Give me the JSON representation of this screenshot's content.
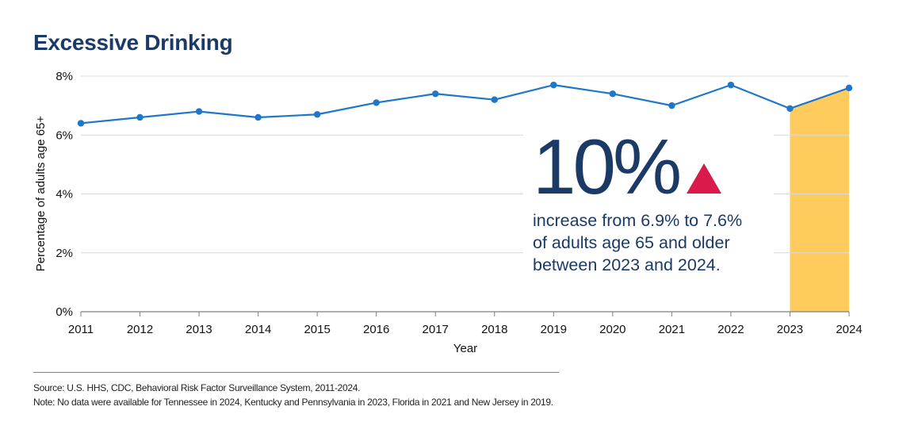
{
  "title": "Excessive Drinking",
  "callout": {
    "big_value": "10%",
    "direction_icon": "up-triangle-icon",
    "text_lines": [
      "increase from 6.9% to 7.6%",
      "of adults age 65 and older",
      "between 2023 and 2024."
    ]
  },
  "footnotes": {
    "source": "Source: U.S. HHS, CDC, Behavioral Risk Factor Surveillance System, 2011-2024.",
    "note": "Note: No data were available for Tennessee in 2024, Kentucky and Pennsylvania in 2023, Florida in 2021 and New Jersey in 2019."
  },
  "colors": {
    "title": "#1b3a66",
    "line": "#1f77c9",
    "highlight": "#ffcb5c",
    "arrow": "#d91a4a",
    "grid": "#d9d9d9",
    "axis": "#7f7f7f"
  },
  "chart_data": {
    "type": "line",
    "xlabel": "Year",
    "ylabel": "Percentage of adults age 65+",
    "x": [
      2011,
      2012,
      2013,
      2014,
      2015,
      2016,
      2017,
      2018,
      2019,
      2020,
      2021,
      2022,
      2023,
      2024
    ],
    "series": [
      {
        "values": [
          6.4,
          6.6,
          6.8,
          6.6,
          6.7,
          7.1,
          7.4,
          7.2,
          7.7,
          7.4,
          7.0,
          7.7,
          6.9,
          7.6
        ]
      }
    ],
    "ylim": [
      0,
      8
    ],
    "yticks": [
      0,
      2,
      4,
      6,
      8
    ],
    "ytick_labels": [
      "0%",
      "2%",
      "4%",
      "6%",
      "8%"
    ],
    "highlight_x_range": [
      2023,
      2024
    ],
    "grid": "horizontal",
    "legend": "none"
  }
}
